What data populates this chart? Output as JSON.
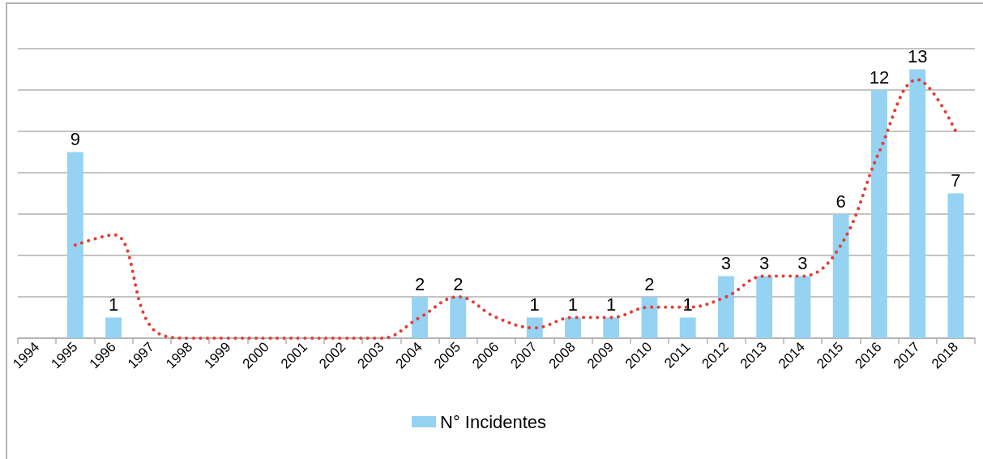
{
  "chart_data": {
    "type": "bar",
    "categories": [
      "1994",
      "1995",
      "1996",
      "1997",
      "1998",
      "1999",
      "2000",
      "2001",
      "2002",
      "2003",
      "2004",
      "2005",
      "2006",
      "2007",
      "2008",
      "2009",
      "2010",
      "2011",
      "2012",
      "2013",
      "2014",
      "2015",
      "2016",
      "2017",
      "2018"
    ],
    "series": [
      {
        "name": "N° Incidentes",
        "color": "#96d2f2",
        "values": [
          0,
          9,
          1,
          0,
          0,
          0,
          0,
          0,
          0,
          0,
          2,
          2,
          0,
          1,
          1,
          1,
          2,
          1,
          3,
          3,
          3,
          6,
          12,
          13,
          7
        ],
        "value_labels": [
          null,
          "9",
          "1",
          null,
          null,
          null,
          null,
          null,
          null,
          null,
          "2",
          "2",
          null,
          "1",
          "1",
          "1",
          "2",
          "1",
          "3",
          "3",
          "3",
          "6",
          "12",
          "13",
          "7"
        ]
      },
      {
        "type": "line",
        "color": "#e04038",
        "line_style": "dotted",
        "marker": "none",
        "values": [
          null,
          4.5,
          5,
          0.5,
          0,
          0,
          0,
          0,
          0,
          0,
          1,
          2,
          1,
          0.5,
          1,
          1,
          1.5,
          1.5,
          2,
          3,
          3,
          4.5,
          9,
          12.5,
          10
        ]
      }
    ],
    "ylim": [
      0,
      14
    ],
    "yticks": [
      {
        "value": 0,
        "label": null
      },
      {
        "value": 2,
        "label": null
      },
      {
        "value": 4,
        "label": null
      },
      {
        "value": 6,
        "label": null
      },
      {
        "value": 8,
        "label": null
      },
      {
        "value": 10,
        "label": null
      },
      {
        "value": 12,
        "label": null
      },
      {
        "value": 14,
        "label": null
      }
    ],
    "grid": "y",
    "legend": "bottom",
    "tick_labels": "x"
  }
}
